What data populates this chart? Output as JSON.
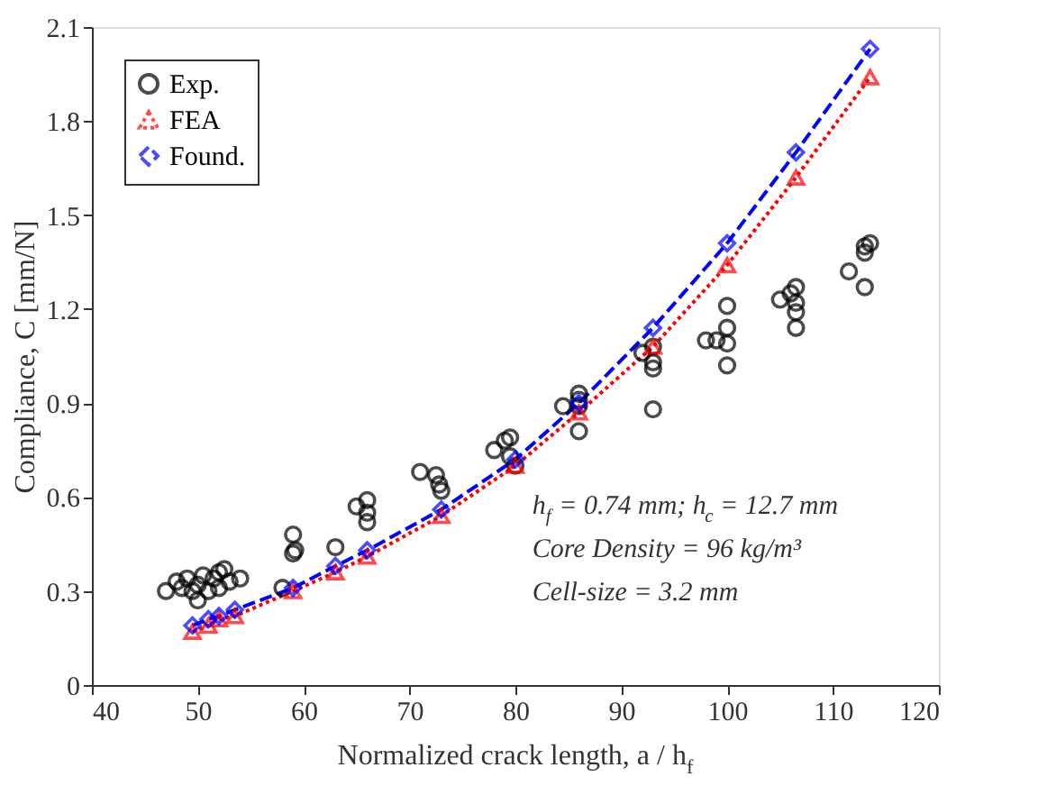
{
  "chart_data": {
    "type": "scatter",
    "xlabel": "Normalized crack length, a / h$_{f}$",
    "ylabel": "Compliance, C [mm/N]",
    "xlim": [
      40,
      120
    ],
    "xticks": [
      40,
      50,
      60,
      70,
      80,
      90,
      100,
      110,
      120
    ],
    "ylim": [
      0,
      2.1
    ],
    "yticks": [
      0,
      0.3,
      0.6,
      0.9,
      1.2,
      1.5,
      1.8,
      2.1
    ],
    "grid": false,
    "legend": "top left",
    "annotations": [
      "h$_{f}$ = 0.74 mm; h$_{c}$ = 12.7 mm",
      "Core Density = 96 kg/m³",
      "Cell-size = 3.2 mm"
    ],
    "series": [
      {
        "name": "Exp.",
        "color": "#000000",
        "marker": "circle",
        "x": [
          47,
          48,
          48.5,
          49,
          49.5,
          50,
          50,
          50.5,
          51,
          51.5,
          52,
          52,
          52.5,
          53,
          54,
          58,
          59,
          59,
          59.2,
          63,
          65,
          66,
          66,
          66,
          71,
          72.5,
          72.8,
          73,
          78,
          79,
          79.5,
          79.5,
          80,
          84.5,
          86,
          86,
          86,
          86,
          92,
          93,
          93,
          93,
          93,
          98,
          99,
          100,
          100,
          100,
          100,
          105,
          106,
          106.5,
          106.5,
          106.5,
          106.5,
          111.5,
          113,
          113,
          113.5,
          113
        ],
        "values": [
          0.3,
          0.33,
          0.31,
          0.34,
          0.3,
          0.27,
          0.32,
          0.35,
          0.3,
          0.34,
          0.36,
          0.31,
          0.37,
          0.33,
          0.34,
          0.31,
          0.48,
          0.42,
          0.43,
          0.44,
          0.57,
          0.59,
          0.55,
          0.52,
          0.68,
          0.67,
          0.64,
          0.62,
          0.75,
          0.78,
          0.79,
          0.73,
          0.7,
          0.89,
          0.93,
          0.91,
          0.89,
          0.81,
          1.06,
          1.08,
          1.03,
          1.01,
          0.88,
          1.1,
          1.1,
          1.21,
          1.14,
          1.09,
          1.02,
          1.23,
          1.25,
          1.27,
          1.22,
          1.19,
          1.14,
          1.32,
          1.4,
          1.38,
          1.41,
          1.27
        ]
      },
      {
        "name": "FEA",
        "type": "line",
        "color": "#ff0000",
        "marker": "triangle",
        "line_style": "dotted",
        "x": [
          49.5,
          51,
          52,
          53.5,
          59,
          63,
          66,
          73,
          80,
          86,
          93,
          100,
          106.5,
          113.5
        ],
        "values": [
          0.17,
          0.19,
          0.21,
          0.22,
          0.3,
          0.36,
          0.41,
          0.54,
          0.7,
          0.87,
          1.08,
          1.34,
          1.62,
          1.94
        ]
      },
      {
        "name": "Found.",
        "type": "line",
        "color": "#0000ff",
        "marker": "diamond",
        "line_style": "dashed",
        "x": [
          49.5,
          51,
          52,
          53.5,
          59,
          63,
          66,
          73,
          80,
          86,
          93,
          100,
          106.5,
          113.5
        ],
        "values": [
          0.19,
          0.21,
          0.22,
          0.24,
          0.31,
          0.38,
          0.43,
          0.56,
          0.72,
          0.9,
          1.14,
          1.41,
          1.7,
          2.03
        ]
      }
    ]
  }
}
